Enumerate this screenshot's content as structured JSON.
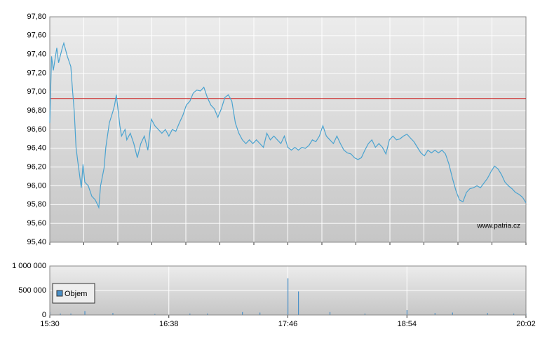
{
  "chart_data": [
    {
      "type": "line",
      "x": [
        "15:30",
        "15:31",
        "15:32",
        "15:34",
        "15:35",
        "15:37",
        "15:38",
        "15:40",
        "15:42",
        "15:43",
        "15:44",
        "15:45",
        "15:46",
        "15:48",
        "15:49",
        "15:50",
        "15:52",
        "15:54",
        "15:56",
        "15:58",
        "15:59",
        "16:01",
        "16:02",
        "16:04",
        "16:06",
        "16:07",
        "16:08",
        "16:10",
        "16:11",
        "16:13",
        "16:14",
        "16:16",
        "16:18",
        "16:20",
        "16:22",
        "16:24",
        "16:26",
        "16:28",
        "16:30",
        "16:32",
        "16:34",
        "16:36",
        "16:38",
        "16:40",
        "16:42",
        "16:44",
        "16:46",
        "16:48",
        "16:50",
        "16:52",
        "16:54",
        "16:56",
        "16:58",
        "17:00",
        "17:02",
        "17:04",
        "17:06",
        "17:08",
        "17:10",
        "17:12",
        "17:14",
        "17:16",
        "17:18",
        "17:20",
        "17:22",
        "17:24",
        "17:26",
        "17:28",
        "17:30",
        "17:32",
        "17:34",
        "17:36",
        "17:38",
        "17:40",
        "17:42",
        "17:44",
        "17:46",
        "17:48",
        "17:50",
        "17:52",
        "17:54",
        "17:56",
        "17:58",
        "18:00",
        "18:02",
        "18:04",
        "18:06",
        "18:08",
        "18:10",
        "18:12",
        "18:14",
        "18:16",
        "18:18",
        "18:20",
        "18:22",
        "18:24",
        "18:26",
        "18:28",
        "18:30",
        "18:32",
        "18:34",
        "18:36",
        "18:38",
        "18:40",
        "18:42",
        "18:44",
        "18:46",
        "18:48",
        "18:50",
        "18:52",
        "18:54",
        "18:56",
        "18:58",
        "19:00",
        "19:02",
        "19:04",
        "19:06",
        "19:08",
        "19:10",
        "19:12",
        "19:14",
        "19:16",
        "19:18",
        "19:20",
        "19:22",
        "19:24",
        "19:26",
        "19:28",
        "19:30",
        "19:32",
        "19:34",
        "19:36",
        "19:38",
        "19:40",
        "19:42",
        "19:44",
        "19:46",
        "19:48",
        "19:50",
        "19:52",
        "19:54",
        "19:56",
        "19:58",
        "20:00",
        "20:02"
      ],
      "values": [
        96.67,
        97.38,
        97.23,
        97.47,
        97.31,
        97.46,
        97.52,
        97.38,
        97.27,
        97.01,
        96.79,
        96.41,
        96.26,
        95.98,
        96.23,
        96.04,
        96.0,
        95.89,
        95.85,
        95.77,
        96.0,
        96.19,
        96.41,
        96.67,
        96.79,
        96.86,
        96.97,
        96.64,
        96.53,
        96.6,
        96.49,
        96.56,
        96.45,
        96.3,
        96.45,
        96.53,
        96.38,
        96.71,
        96.64,
        96.6,
        96.56,
        96.6,
        96.53,
        96.6,
        96.58,
        96.67,
        96.75,
        96.86,
        96.9,
        96.99,
        97.02,
        97.01,
        97.05,
        96.94,
        96.86,
        96.82,
        96.73,
        96.82,
        96.94,
        96.97,
        96.9,
        96.67,
        96.56,
        96.49,
        96.45,
        96.49,
        96.45,
        96.49,
        96.45,
        96.41,
        96.56,
        96.49,
        96.53,
        96.49,
        96.45,
        96.53,
        96.41,
        96.38,
        96.41,
        96.38,
        96.41,
        96.4,
        96.43,
        96.49,
        96.47,
        96.53,
        96.64,
        96.53,
        96.49,
        96.45,
        96.53,
        96.45,
        96.38,
        96.35,
        96.34,
        96.3,
        96.28,
        96.3,
        96.38,
        96.45,
        96.49,
        96.41,
        96.45,
        96.41,
        96.34,
        96.49,
        96.53,
        96.49,
        96.5,
        96.53,
        96.55,
        96.51,
        96.47,
        96.41,
        96.35,
        96.32,
        96.38,
        96.35,
        96.38,
        96.35,
        96.38,
        96.34,
        96.23,
        96.08,
        95.95,
        95.85,
        95.83,
        95.93,
        95.97,
        95.98,
        96.0,
        95.98,
        96.03,
        96.08,
        96.15,
        96.21,
        96.18,
        96.12,
        96.04,
        96.0,
        95.97,
        95.93,
        95.91,
        95.88,
        95.82
      ],
      "color": "#4aa3d0",
      "xlim": [
        "15:30",
        "20:02"
      ],
      "ylim": [
        95.4,
        97.8
      ],
      "yticks": [
        {
          "value": 95.4,
          "label": "95,40"
        },
        {
          "value": 95.6,
          "label": "95,60"
        },
        {
          "value": 95.8,
          "label": "95,80"
        },
        {
          "value": 96.0,
          "label": "96,00"
        },
        {
          "value": 96.2,
          "label": "96,20"
        },
        {
          "value": 96.4,
          "label": "96,40"
        },
        {
          "value": 96.6,
          "label": "96,60"
        },
        {
          "value": 96.8,
          "label": "96,80"
        },
        {
          "value": 97.0,
          "label": "97,00"
        },
        {
          "value": 97.2,
          "label": "97,20"
        },
        {
          "value": 97.4,
          "label": "97,40"
        },
        {
          "value": 97.6,
          "label": "97,60"
        },
        {
          "value": 97.8,
          "label": "97,80"
        }
      ],
      "reference_line": 96.93,
      "reference_color": "#cc2222",
      "annotation": "www.patria.cz",
      "grid": true
    },
    {
      "type": "bar",
      "x": [
        "15:30",
        "15:36",
        "15:42",
        "15:50",
        "16:06",
        "16:30",
        "16:50",
        "17:00",
        "17:20",
        "17:30",
        "17:46",
        "17:52",
        "18:10",
        "18:30",
        "18:54",
        "19:10",
        "19:20",
        "19:40",
        "19:55",
        "20:02"
      ],
      "series": [
        {
          "name": "Objem",
          "color": "#4a90c8",
          "values": [
            60000,
            30000,
            30000,
            80000,
            40000,
            20000,
            30000,
            30000,
            60000,
            50000,
            750000,
            480000,
            60000,
            30000,
            100000,
            40000,
            50000,
            40000,
            30000,
            30000
          ]
        }
      ],
      "xlim": [
        "15:30",
        "20:02"
      ],
      "xticks": [
        "15:30",
        "16:38",
        "17:46",
        "18:54",
        "20:02"
      ],
      "ylim": [
        0,
        1000000
      ],
      "yticks": [
        0,
        {
          "value": 500000,
          "label": "500 000"
        },
        {
          "value": 1000000,
          "label": "1 000 000"
        }
      ],
      "grid": true,
      "legend": "upper-left"
    }
  ]
}
